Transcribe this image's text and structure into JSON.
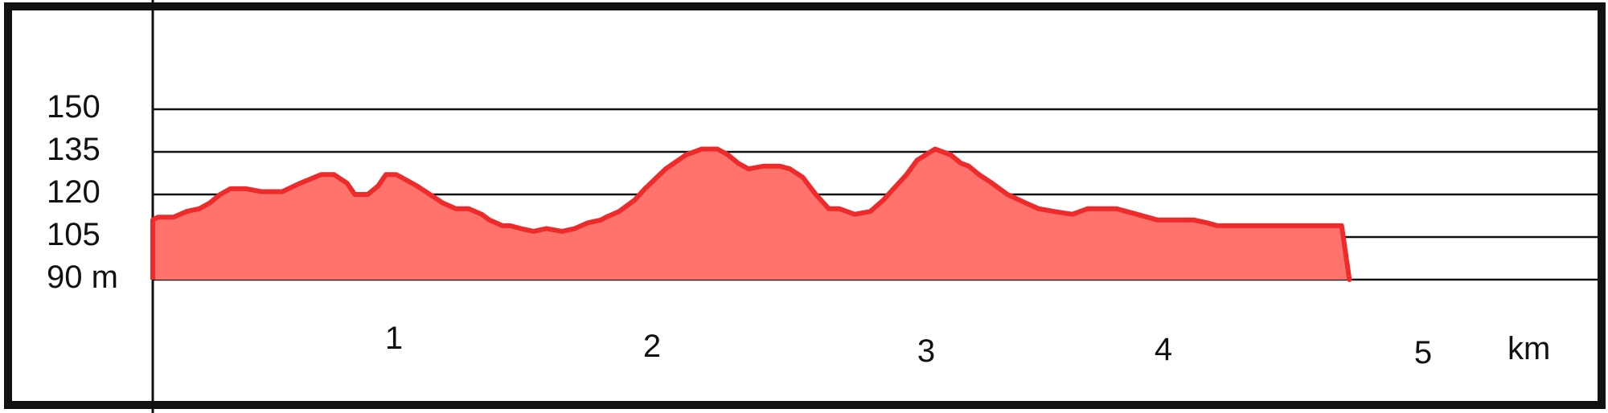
{
  "colors": {
    "fill": "#ff736c",
    "stroke": "#ee2a2a",
    "lines": "#111111"
  },
  "chart_data": {
    "type": "area",
    "title": "",
    "xlabel": "",
    "ylabel": "",
    "x_unit": "km",
    "y_unit": "m",
    "xlim": [
      0.5,
      5.6
    ],
    "ylim": [
      90,
      150
    ],
    "yticks": [
      150,
      135,
      120,
      105,
      90
    ],
    "ytick_labels": [
      "150",
      "135",
      "120",
      "105",
      "90 m"
    ],
    "xticks": [
      1,
      2,
      3,
      4,
      5
    ],
    "xtick_labels": [
      "1",
      "2",
      "3",
      "4",
      "5"
    ],
    "grid": true,
    "legend": "none",
    "series": [
      {
        "x": [
          0.5,
          0.52,
          0.58,
          0.63,
          0.68,
          0.72,
          0.76,
          0.8,
          0.86,
          0.92,
          1.0,
          1.07,
          1.15,
          1.2,
          1.25,
          1.28,
          1.33,
          1.37,
          1.4,
          1.44,
          1.48,
          1.52,
          1.57,
          1.62,
          1.67,
          1.72,
          1.77,
          1.8,
          1.85,
          1.88,
          1.92,
          1.97,
          2.02,
          2.08,
          2.13,
          2.18,
          2.23,
          2.25,
          2.3,
          2.36,
          2.4,
          2.48,
          2.56,
          2.62,
          2.68,
          2.72,
          2.76,
          2.8,
          2.86,
          2.92,
          2.96,
          3.01,
          3.06,
          3.11,
          3.15,
          3.21,
          3.27,
          3.32,
          3.35,
          3.37,
          3.41,
          3.45,
          3.52,
          3.58,
          3.62,
          3.65,
          3.69,
          3.74,
          3.8,
          3.87,
          3.92,
          3.98,
          4.05,
          4.11,
          4.16,
          4.22,
          4.26,
          4.3,
          4.34,
          4.38,
          4.42,
          4.47,
          4.52,
          4.57,
          4.61,
          4.66,
          4.72,
          4.78,
          4.83,
          4.88,
          4.92,
          4.95,
          4.98,
          5.0,
          5.03,
          5.06,
          5.09,
          5.12
        ],
        "y": [
          111,
          112,
          112,
          114,
          115,
          117,
          120,
          122,
          122,
          121,
          121,
          124,
          127,
          127,
          124,
          120,
          120,
          123,
          127,
          127,
          125,
          123,
          120,
          117,
          115,
          115,
          113,
          111,
          109,
          109,
          108,
          107,
          108,
          107,
          108,
          110,
          111,
          112,
          114,
          118,
          122,
          129,
          134,
          136,
          136,
          134,
          131,
          129,
          130,
          130,
          129,
          126,
          120,
          115,
          115,
          113,
          114,
          118,
          121,
          123,
          127,
          132,
          136,
          134,
          131,
          130,
          127,
          124,
          120,
          117,
          115,
          114,
          113,
          115,
          115,
          115,
          114,
          113,
          112,
          111,
          111,
          111,
          111,
          110,
          109,
          109,
          109,
          109,
          109,
          109,
          109,
          109,
          109,
          109,
          109,
          109,
          109,
          90
        ]
      }
    ]
  }
}
